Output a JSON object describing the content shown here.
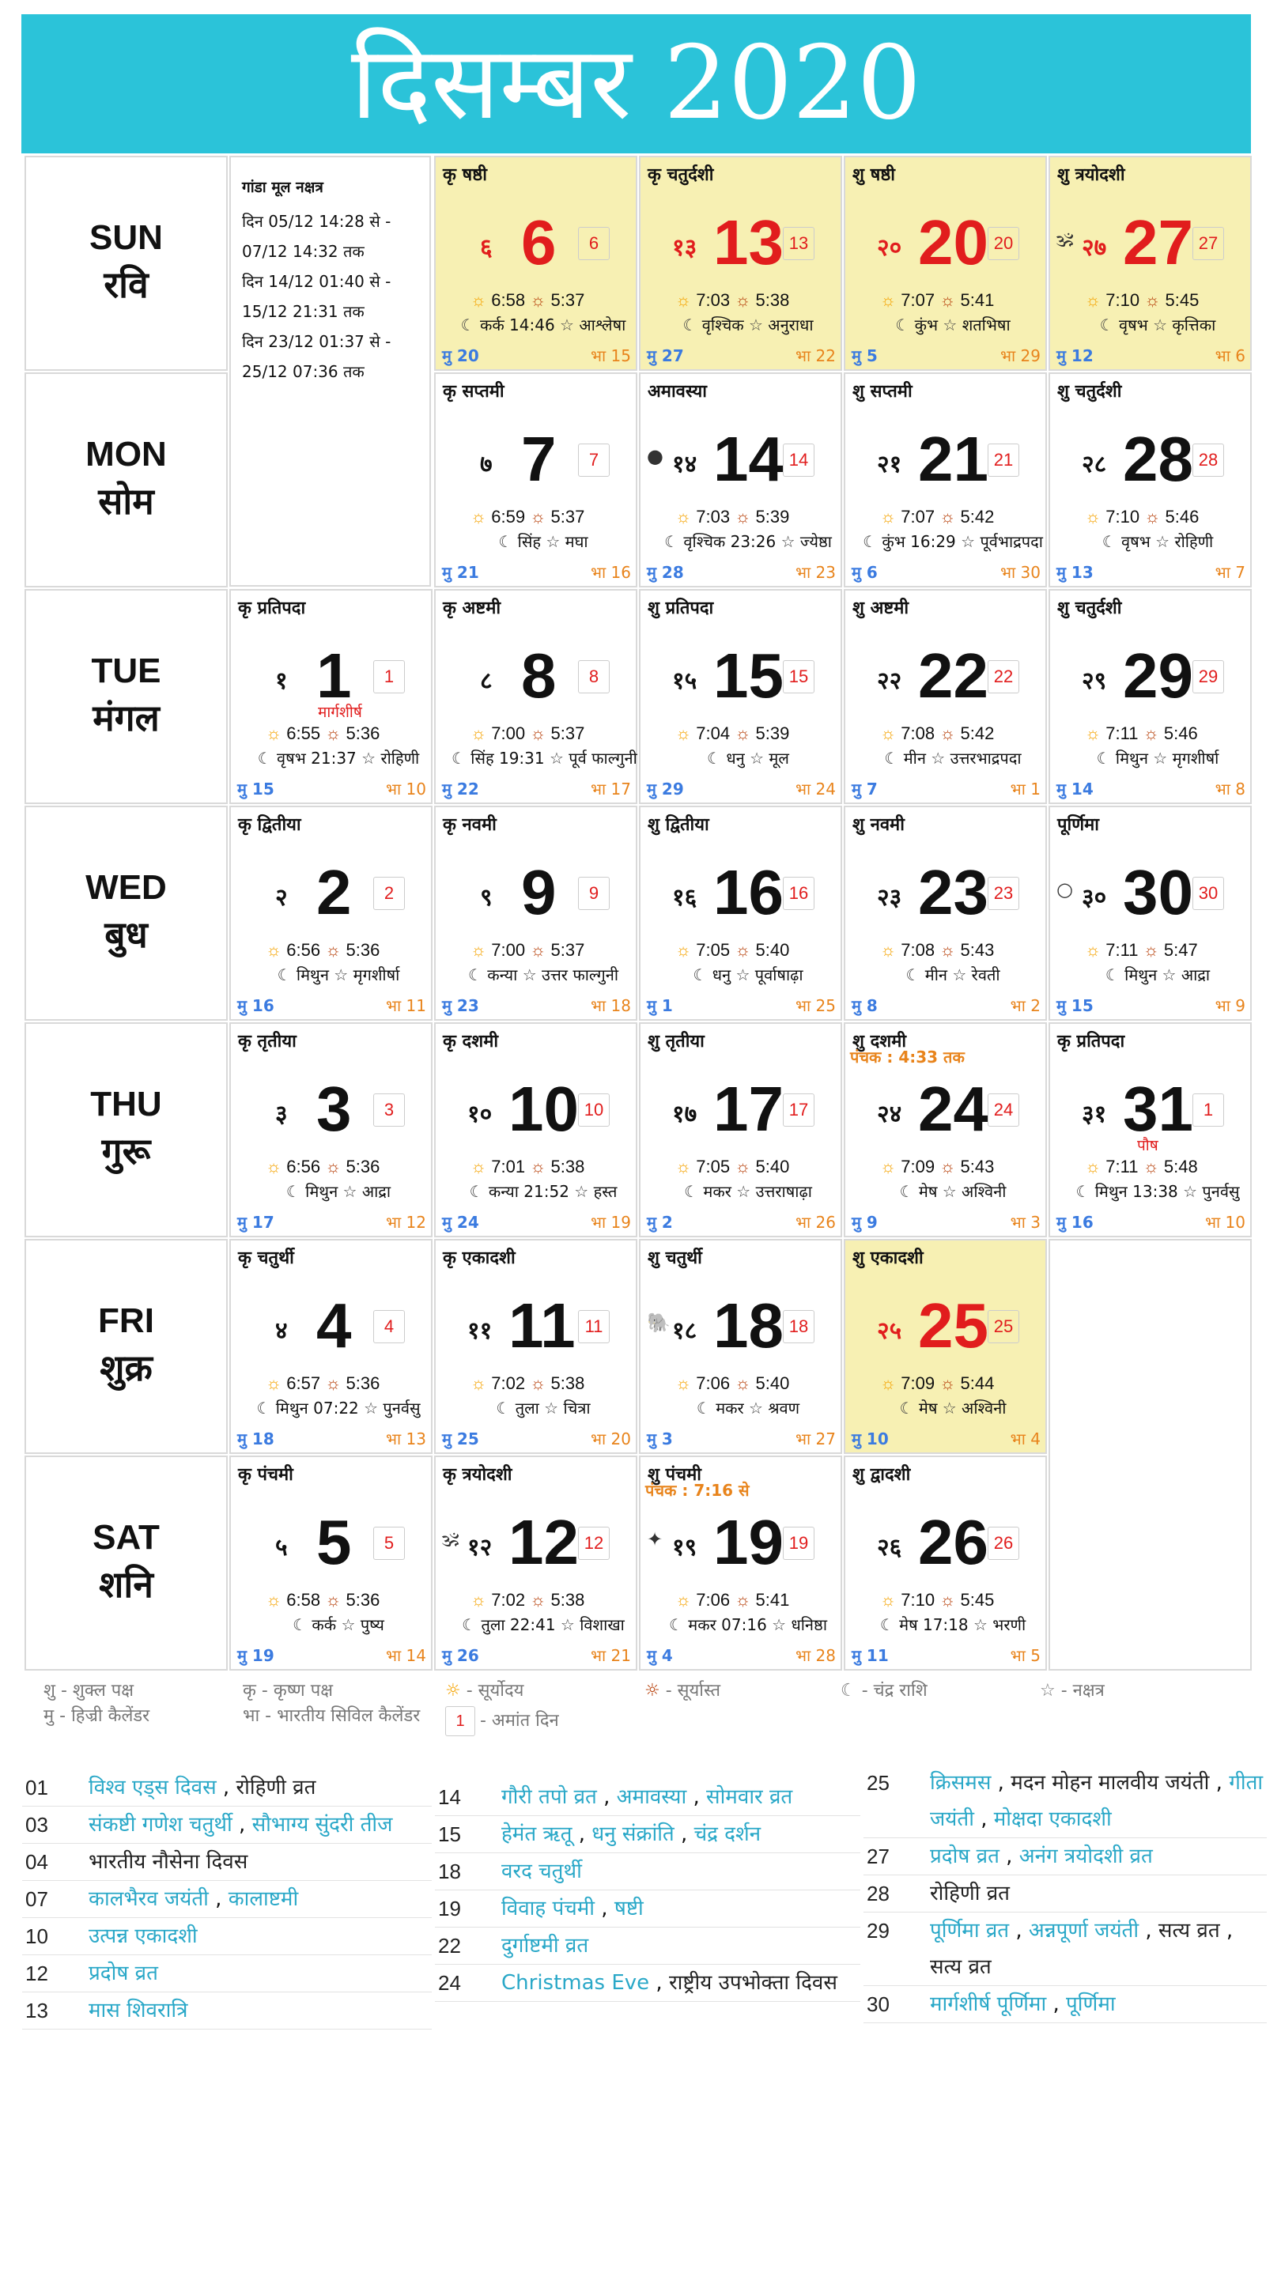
{
  "title": "दिसम्बर 2020",
  "days": [
    {
      "en": "SUN",
      "hi": "रवि"
    },
    {
      "en": "MON",
      "hi": "सोम"
    },
    {
      "en": "TUE",
      "hi": "मंगल"
    },
    {
      "en": "WED",
      "hi": "बुध"
    },
    {
      "en": "THU",
      "hi": "गुरू"
    },
    {
      "en": "FRI",
      "hi": "शुक्र"
    },
    {
      "en": "SAT",
      "hi": "शनि"
    }
  ],
  "nakshatra_box": {
    "title": "गांडा मूल नक्षत्र",
    "lines": [
      "दिन 05/12 14:28 से -",
      "07/12 14:32 तक",
      "दिन 14/12 01:40 से -",
      "15/12 21:31 तक",
      "दिन 23/12 01:37 से -",
      "25/12 07:36 तक"
    ]
  },
  "cells": [
    {
      "col": 1,
      "row": 0,
      "hl": true,
      "red": true,
      "tithi": "कृ षष्ठी",
      "hn": "६",
      "day": "6",
      "box": "6",
      "rise": "6:58",
      "set": "5:37",
      "moon": "कर्क 14:46",
      "nak": "आश्लेषा",
      "mu": "मु 20",
      "bha": "भा 15"
    },
    {
      "col": 2,
      "row": 0,
      "hl": true,
      "red": true,
      "tithi": "कृ चतुर्दशी",
      "hn": "१३",
      "day": "13",
      "box": "13",
      "rise": "7:03",
      "set": "5:38",
      "moon": "वृश्चिक",
      "nak": "अनुराधा",
      "mu": "मु 27",
      "bha": "भा 22"
    },
    {
      "col": 3,
      "row": 0,
      "hl": true,
      "red": true,
      "tithi": "शु षष्ठी",
      "hn": "२०",
      "day": "20",
      "box": "20",
      "rise": "7:07",
      "set": "5:41",
      "moon": "कुंभ",
      "nak": "शतभिषा",
      "mu": "मु 5",
      "bha": "भा 29"
    },
    {
      "col": 4,
      "row": 0,
      "hl": true,
      "red": true,
      "tithi": "शु त्रयोदशी",
      "hn": "२७",
      "day": "27",
      "box": "27",
      "rise": "7:10",
      "set": "5:45",
      "moon": "वृषभ",
      "nak": "कृत्तिका",
      "mu": "मु 12",
      "bha": "भा 6",
      "sym": "🕉"
    },
    {
      "col": 1,
      "row": 1,
      "tithi": "कृ सप्तमी",
      "hn": "७",
      "day": "7",
      "box": "7",
      "rise": "6:59",
      "set": "5:37",
      "moon": "सिंह",
      "nak": "मघा",
      "mu": "मु 21",
      "bha": "भा 16"
    },
    {
      "col": 2,
      "row": 1,
      "tithi": "अमावस्या",
      "hn": "१४",
      "day": "14",
      "box": "14",
      "rise": "7:03",
      "set": "5:39",
      "moon": "वृश्चिक 23:26",
      "nak": "ज्येष्ठा",
      "mu": "मु 28",
      "bha": "भा 23",
      "sym": "●"
    },
    {
      "col": 3,
      "row": 1,
      "tithi": "शु सप्तमी",
      "hn": "२१",
      "day": "21",
      "box": "21",
      "rise": "7:07",
      "set": "5:42",
      "moon": "कुंभ 16:29",
      "nak": "पूर्वभाद्रपदा",
      "mu": "मु 6",
      "bha": "भा 30"
    },
    {
      "col": 4,
      "row": 1,
      "tithi": "शु चतुर्दशी",
      "hn": "२८",
      "day": "28",
      "box": "28",
      "rise": "7:10",
      "set": "5:46",
      "moon": "वृषभ",
      "nak": "रोहिणी",
      "mu": "मु 13",
      "bha": "भा 7"
    },
    {
      "col": 0,
      "row": 2,
      "tithi": "कृ प्रतिपदा",
      "hn": "१",
      "day": "1",
      "box": "1",
      "mname": "मार्गशीर्ष",
      "rise": "6:55",
      "set": "5:36",
      "moon": "वृषभ 21:37",
      "nak": "रोहिणी",
      "mu": "मु 15",
      "bha": "भा 10"
    },
    {
      "col": 1,
      "row": 2,
      "tithi": "कृ अष्टमी",
      "hn": "८",
      "day": "8",
      "box": "8",
      "rise": "7:00",
      "set": "5:37",
      "moon": "सिंह 19:31",
      "nak": "पूर्व फाल्गुनी",
      "mu": "मु 22",
      "bha": "भा 17"
    },
    {
      "col": 2,
      "row": 2,
      "tithi": "शु प्रतिपदा",
      "hn": "१५",
      "day": "15",
      "box": "15",
      "rise": "7:04",
      "set": "5:39",
      "moon": "धनु",
      "nak": "मूल",
      "mu": "मु 29",
      "bha": "भा 24"
    },
    {
      "col": 3,
      "row": 2,
      "tithi": "शु अष्टमी",
      "hn": "२२",
      "day": "22",
      "box": "22",
      "rise": "7:08",
      "set": "5:42",
      "moon": "मीन",
      "nak": "उत्तरभाद्रपदा",
      "mu": "मु 7",
      "bha": "भा 1"
    },
    {
      "col": 4,
      "row": 2,
      "tithi": "शु चतुर्दशी",
      "hn": "२९",
      "day": "29",
      "box": "29",
      "rise": "7:11",
      "set": "5:46",
      "moon": "मिथुन",
      "nak": "मृगशीर्षा",
      "mu": "मु 14",
      "bha": "भा 8"
    },
    {
      "col": 0,
      "row": 3,
      "tithi": "कृ द्वितीया",
      "hn": "२",
      "day": "2",
      "box": "2",
      "rise": "6:56",
      "set": "5:36",
      "moon": "मिथुन",
      "nak": "मृगशीर्षा",
      "mu": "मु 16",
      "bha": "भा 11"
    },
    {
      "col": 1,
      "row": 3,
      "tithi": "कृ नवमी",
      "hn": "९",
      "day": "9",
      "box": "9",
      "rise": "7:00",
      "set": "5:37",
      "moon": "कन्या",
      "nak": "उत्तर फाल्गुनी",
      "mu": "मु 23",
      "bha": "भा 18"
    },
    {
      "col": 2,
      "row": 3,
      "tithi": "शु द्वितीया",
      "hn": "१६",
      "day": "16",
      "box": "16",
      "rise": "7:05",
      "set": "5:40",
      "moon": "धनु",
      "nak": "पूर्वाषाढ़ा",
      "mu": "मु 1",
      "bha": "भा 25"
    },
    {
      "col": 3,
      "row": 3,
      "tithi": "शु नवमी",
      "hn": "२३",
      "day": "23",
      "box": "23",
      "rise": "7:08",
      "set": "5:43",
      "moon": "मीन",
      "nak": "रेवती",
      "mu": "मु 8",
      "bha": "भा 2"
    },
    {
      "col": 4,
      "row": 3,
      "tithi": "पूर्णिमा",
      "hn": "३०",
      "day": "30",
      "box": "30",
      "rise": "7:11",
      "set": "5:47",
      "moon": "मिथुन",
      "nak": "आद्रा",
      "mu": "मु 15",
      "bha": "भा 9",
      "sym": "○"
    },
    {
      "col": 0,
      "row": 4,
      "tithi": "कृ तृतीया",
      "hn": "३",
      "day": "3",
      "box": "3",
      "rise": "6:56",
      "set": "5:36",
      "moon": "मिथुन",
      "nak": "आद्रा",
      "mu": "मु 17",
      "bha": "भा 12"
    },
    {
      "col": 1,
      "row": 4,
      "tithi": "कृ दशमी",
      "hn": "१०",
      "day": "10",
      "box": "10",
      "rise": "7:01",
      "set": "5:38",
      "moon": "कन्या 21:52",
      "nak": "हस्त",
      "mu": "मु 24",
      "bha": "भा 19"
    },
    {
      "col": 2,
      "row": 4,
      "tithi": "शु तृतीया",
      "hn": "१७",
      "day": "17",
      "box": "17",
      "rise": "7:05",
      "set": "5:40",
      "moon": "मकर",
      "nak": "उत्तराषाढ़ा",
      "mu": "मु 2",
      "bha": "भा 26"
    },
    {
      "col": 3,
      "row": 4,
      "tithi": "शु दशमी",
      "note": "पंचक : 4:33 तक",
      "hn": "२४",
      "day": "24",
      "box": "24",
      "rise": "7:09",
      "set": "5:43",
      "moon": "मेष",
      "nak": "अश्विनी",
      "mu": "मु 9",
      "bha": "भा 3"
    },
    {
      "col": 4,
      "row": 4,
      "tithi": "कृ प्रतिपदा",
      "hn": "३१",
      "day": "31",
      "box": "1",
      "mname": "पौष",
      "rise": "7:11",
      "set": "5:48",
      "moon": "मिथुन 13:38",
      "nak": "पुनर्वसु",
      "mu": "मु 16",
      "bha": "भा 10"
    },
    {
      "col": 0,
      "row": 5,
      "tithi": "कृ चतुर्थी",
      "hn": "४",
      "day": "4",
      "box": "4",
      "rise": "6:57",
      "set": "5:36",
      "moon": "मिथुन 07:22",
      "nak": "पुनर्वसु",
      "mu": "मु 18",
      "bha": "भा 13"
    },
    {
      "col": 1,
      "row": 5,
      "tithi": "कृ एकादशी",
      "hn": "११",
      "day": "11",
      "box": "11",
      "rise": "7:02",
      "set": "5:38",
      "moon": "तुला",
      "nak": "चित्रा",
      "mu": "मु 25",
      "bha": "भा 20"
    },
    {
      "col": 2,
      "row": 5,
      "tithi": "शु चतुर्थी",
      "hn": "१८",
      "day": "18",
      "box": "18",
      "rise": "7:06",
      "set": "5:40",
      "moon": "मकर",
      "nak": "श्रवण",
      "mu": "मु 3",
      "bha": "भा 27",
      "sym": "🐘"
    },
    {
      "col": 3,
      "row": 5,
      "hl": true,
      "red": true,
      "tithi": "शु एकादशी",
      "hn": "२५",
      "day": "25",
      "box": "25",
      "rise": "7:09",
      "set": "5:44",
      "moon": "मेष",
      "nak": "अश्विनी",
      "mu": "मु 10",
      "bha": "भा 4"
    },
    {
      "col": 0,
      "row": 6,
      "tithi": "कृ पंचमी",
      "hn": "५",
      "day": "5",
      "box": "5",
      "rise": "6:58",
      "set": "5:36",
      "moon": "कर्क",
      "nak": "पुष्य",
      "mu": "मु 19",
      "bha": "भा 14"
    },
    {
      "col": 1,
      "row": 6,
      "tithi": "कृ त्रयोदशी",
      "hn": "१२",
      "day": "12",
      "box": "12",
      "rise": "7:02",
      "set": "5:38",
      "moon": "तुला 22:41",
      "nak": "विशाखा",
      "mu": "मु 26",
      "bha": "भा 21",
      "sym": "🕉"
    },
    {
      "col": 2,
      "row": 6,
      "tithi": "शु पंचमी",
      "note": "पंचक : 7:16 से",
      "hn": "१९",
      "day": "19",
      "box": "19",
      "rise": "7:06",
      "set": "5:41",
      "moon": "मकर 07:16",
      "nak": "धनिष्ठा",
      "mu": "मु 4",
      "bha": "भा 28",
      "sym": "✦"
    },
    {
      "col": 3,
      "row": 6,
      "tithi": "शु द्वादशी",
      "hn": "२६",
      "day": "26",
      "box": "26",
      "rise": "7:10",
      "set": "5:45",
      "moon": "मेष 17:18",
      "nak": "भरणी",
      "mu": "मु 11",
      "bha": "भा 5"
    }
  ],
  "legend": {
    "shukla": "शु - शुक्ल पक्ष",
    "krishna": "कृ - कृष्ण पक्ष",
    "hijri": "मु - हिज्री कैलेंडर",
    "bharatiya": "भा - भारतीय सिविल कैलेंडर",
    "sunrise": "- सूर्योदय",
    "sunset": "- सूर्यास्त",
    "moon": "- चंद्र राशि",
    "nak": "- नक्षत्र",
    "amant_box": "1",
    "amant": "- अमांत दिन"
  },
  "festivals": {
    "col1": [
      {
        "d": "01",
        "items": [
          {
            "t": "विश्व एड्स दिवस",
            "link": true
          },
          {
            "t": "रोहिणी व्रत",
            "link": false
          }
        ]
      },
      {
        "d": "03",
        "items": [
          {
            "t": "संकष्टी गणेश चतुर्थी",
            "link": true
          },
          {
            "t": "सौभाग्य सुंदरी तीज",
            "link": true
          }
        ]
      },
      {
        "d": "04",
        "items": [
          {
            "t": "भारतीय नौसेना दिवस",
            "link": false
          }
        ]
      },
      {
        "d": "07",
        "items": [
          {
            "t": "कालभैरव जयंती",
            "link": true
          },
          {
            "t": "कालाष्टमी",
            "link": true
          }
        ]
      },
      {
        "d": "10",
        "items": [
          {
            "t": "उत्पन्न एकादशी",
            "link": true
          }
        ]
      },
      {
        "d": "12",
        "items": [
          {
            "t": "प्रदोष व्रत",
            "link": true
          }
        ]
      },
      {
        "d": "13",
        "items": [
          {
            "t": "मास शिवरात्रि",
            "link": true
          }
        ]
      }
    ],
    "col2": [
      {
        "d": "14",
        "items": [
          {
            "t": "गौरी तपो व्रत",
            "link": true
          },
          {
            "t": "अमावस्या",
            "link": true
          },
          {
            "t": "सोमवार व्रत",
            "link": true
          }
        ]
      },
      {
        "d": "15",
        "items": [
          {
            "t": "हेमंत ऋतू",
            "link": true
          },
          {
            "t": "धनु संक्रांति",
            "link": true
          },
          {
            "t": "चंद्र दर्शन",
            "link": true
          }
        ]
      },
      {
        "d": "18",
        "items": [
          {
            "t": "वरद चतुर्थी",
            "link": true
          }
        ]
      },
      {
        "d": "19",
        "items": [
          {
            "t": "विवाह पंचमी",
            "link": true
          },
          {
            "t": "षष्टी",
            "link": true
          }
        ]
      },
      {
        "d": "22",
        "items": [
          {
            "t": "दुर्गाष्टमी व्रत",
            "link": true
          }
        ]
      },
      {
        "d": "24",
        "items": [
          {
            "t": "Christmas Eve",
            "link": true
          },
          {
            "t": "राष्ट्रीय उपभोक्ता दिवस",
            "link": false
          }
        ]
      }
    ],
    "col3": [
      {
        "d": "25",
        "items": [
          {
            "t": "क्रिसमस",
            "link": true
          },
          {
            "t": "मदन मोहन मालवीय जयंती",
            "link": false
          },
          {
            "t": "गीता जयंती",
            "link": true
          },
          {
            "t": "मोक्षदा एकादशी",
            "link": true
          }
        ]
      },
      {
        "d": "27",
        "items": [
          {
            "t": "प्रदोष व्रत",
            "link": true
          },
          {
            "t": "अनंग त्रयोदशी व्रत",
            "link": true
          }
        ]
      },
      {
        "d": "28",
        "items": [
          {
            "t": "रोहिणी व्रत",
            "link": false
          }
        ]
      },
      {
        "d": "29",
        "items": [
          {
            "t": "पूर्णिमा व्रत",
            "link": true
          },
          {
            "t": "अन्नपूर्णा जयंती",
            "link": true
          },
          {
            "t": "सत्य व्रत",
            "link": false
          },
          {
            "t": "सत्य व्रत",
            "link": false
          }
        ]
      },
      {
        "d": "30",
        "items": [
          {
            "t": "मार्गशीर्ष पूर्णिमा",
            "link": true
          },
          {
            "t": "पूर्णिमा",
            "link": true
          }
        ]
      }
    ]
  },
  "colors": {
    "banner": "#2bc3d9",
    "highlight": "#f7f0b3",
    "red": "#e11d1d",
    "link": "#2aa8c8",
    "mu": "#3b7be0",
    "bha": "#e8841c"
  }
}
